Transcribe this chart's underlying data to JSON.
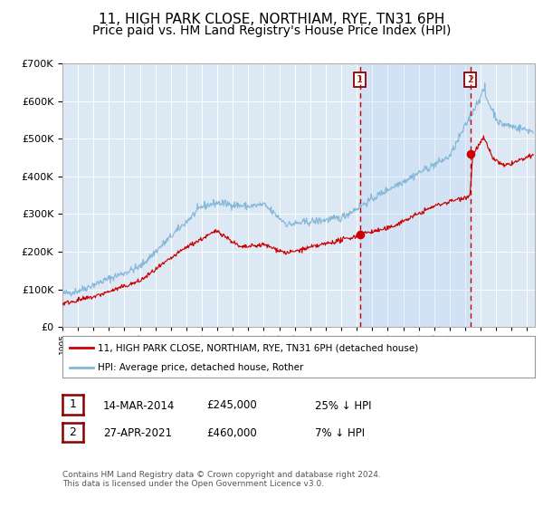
{
  "title": "11, HIGH PARK CLOSE, NORTHIAM, RYE, TN31 6PH",
  "subtitle": "Price paid vs. HM Land Registry's House Price Index (HPI)",
  "legend_red": "11, HIGH PARK CLOSE, NORTHIAM, RYE, TN31 6PH (detached house)",
  "legend_blue": "HPI: Average price, detached house, Rother",
  "annotation1_date": "14-MAR-2014",
  "annotation1_price": "£245,000",
  "annotation1_hpi": "25% ↓ HPI",
  "annotation1_year": 2014.2,
  "annotation1_value": 245000,
  "annotation2_date": "27-APR-2021",
  "annotation2_price": "£460,000",
  "annotation2_hpi": "7% ↓ HPI",
  "annotation2_year": 2021.33,
  "annotation2_value": 460000,
  "footer": "Contains HM Land Registry data © Crown copyright and database right 2024.\nThis data is licensed under the Open Government Licence v3.0.",
  "ylim": [
    0,
    700000
  ],
  "xlim_start": 1995.0,
  "xlim_end": 2025.5,
  "background_color": "#ffffff",
  "plot_bg_color": "#dce9f5",
  "grid_color": "#ffffff",
  "red_color": "#cc0000",
  "blue_color": "#85b8d8",
  "vline_color": "#cc0000",
  "title_fontsize": 11,
  "subtitle_fontsize": 10
}
